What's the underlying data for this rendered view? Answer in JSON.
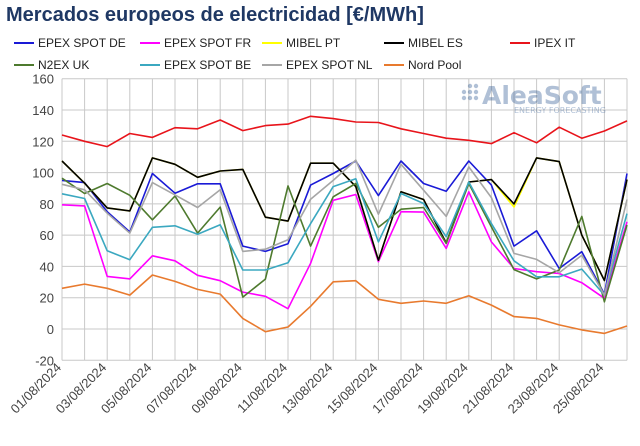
{
  "chart_data": {
    "type": "line",
    "title": "Mercados europeos de electricidad [€/MWh]",
    "xlabel": "",
    "ylabel": "",
    "ylim": [
      -20,
      160
    ],
    "yticks": [
      -20,
      0,
      20,
      40,
      60,
      80,
      100,
      120,
      140,
      160
    ],
    "grid": true,
    "legend_position": "top",
    "x": [
      "01/08/2024",
      "02/08/2024",
      "03/08/2024",
      "04/08/2024",
      "05/08/2024",
      "06/08/2024",
      "07/08/2024",
      "08/08/2024",
      "09/08/2024",
      "10/08/2024",
      "11/08/2024",
      "12/08/2024",
      "13/08/2024",
      "14/08/2024",
      "15/08/2024",
      "16/08/2024",
      "17/08/2024",
      "18/08/2024",
      "19/08/2024",
      "20/08/2024",
      "21/08/2024",
      "22/08/2024",
      "23/08/2024",
      "24/08/2024",
      "25/08/2024",
      "26/08/2024"
    ],
    "xtick_labels": [
      "01/08/2024",
      "03/08/2024",
      "05/08/2024",
      "07/08/2024",
      "09/08/2024",
      "11/08/2024",
      "13/08/2024",
      "15/08/2024",
      "17/08/2024",
      "19/08/2024",
      "21/08/2024",
      "23/08/2024",
      "25/08/2024"
    ],
    "series": [
      {
        "name": "EPEX SPOT DE",
        "color": "#1a1ad6",
        "values": [
          95,
          93.6,
          75,
          62,
          99.4,
          86.8,
          92.8,
          92.8,
          53,
          49.6,
          54.5,
          92,
          99.4,
          107.4,
          85.3,
          107.4,
          93,
          88,
          107.4,
          92,
          53,
          62.8,
          38.7,
          49.4,
          22.3,
          99.4
        ]
      },
      {
        "name": "EPEX SPOT FR",
        "color": "#ff00ff",
        "values": [
          79.4,
          78.7,
          33.6,
          32,
          46.8,
          43.6,
          34.3,
          30.9,
          23.6,
          20.9,
          13,
          42,
          82.3,
          86,
          43,
          75,
          74.7,
          51.5,
          87.7,
          55.7,
          38.7,
          36.6,
          35.5,
          29.6,
          19.6,
          68.5
        ]
      },
      {
        "name": "MIBEL PT",
        "color": "#ffff00",
        "values": [
          107.4,
          93.2,
          77.4,
          75.5,
          109.4,
          105.3,
          97,
          101,
          102,
          71.5,
          69,
          106,
          106,
          91,
          44,
          87.7,
          82.8,
          55,
          94,
          95.5,
          78,
          109.4,
          107,
          60,
          31,
          95.5
        ]
      },
      {
        "name": "MIBEL ES",
        "color": "#000000",
        "values": [
          107.4,
          93.2,
          77.4,
          75.5,
          109.4,
          105.3,
          97,
          101,
          102,
          71.5,
          69,
          106,
          106,
          91,
          44,
          87.7,
          82.8,
          55,
          94,
          95.5,
          80,
          109.4,
          107,
          60,
          31,
          95.5
        ]
      },
      {
        "name": "IPEX IT",
        "color": "#e8141b",
        "values": [
          124,
          120,
          116.6,
          125,
          122.5,
          128.7,
          128,
          133.6,
          126.8,
          130,
          131,
          136,
          134.5,
          132.3,
          132,
          128,
          125,
          122,
          120.6,
          118.5,
          125.5,
          119,
          129,
          122,
          126.6,
          133
        ]
      },
      {
        "name": "N2EX UK",
        "color": "#4e7a2e",
        "values": [
          96.4,
          86.6,
          93,
          85.5,
          69.8,
          85,
          61.3,
          77.9,
          20.4,
          31.9,
          91.5,
          53,
          84.5,
          93,
          65,
          76.6,
          77.7,
          54.7,
          93,
          65.3,
          38,
          32,
          37.7,
          72,
          17.4,
          66.5
        ]
      },
      {
        "name": "EPEX SPOT BE",
        "color": "#3ba8c0",
        "values": [
          86.4,
          83.4,
          50,
          44.3,
          65,
          66,
          60.6,
          66.6,
          37.7,
          37.7,
          42.3,
          67.4,
          91,
          96,
          55.7,
          86.6,
          80.2,
          59,
          94,
          67.4,
          43.6,
          33.4,
          33.4,
          38.3,
          21.7,
          73.8
        ]
      },
      {
        "name": "EPEX SPOT NL",
        "color": "#a6a6a6",
        "values": [
          92.5,
          89,
          74,
          61.3,
          93.6,
          85.7,
          77.7,
          89,
          49.6,
          51,
          57,
          83,
          95,
          108,
          73.4,
          105.3,
          88.7,
          72,
          103.6,
          84,
          48.3,
          44.5,
          36,
          47.2,
          21.7,
          82.8
        ]
      },
      {
        "name": "Nord Pool",
        "color": "#e87a2e",
        "values": [
          26,
          28.7,
          26,
          21.7,
          34.5,
          30.4,
          25.3,
          22.3,
          6.8,
          -1.7,
          1.3,
          14.5,
          30.2,
          30.9,
          19,
          16.4,
          17.9,
          16.4,
          21.3,
          15.3,
          7.9,
          6.8,
          2.6,
          -0.6,
          -2.8,
          1.9
        ]
      }
    ]
  },
  "logo": {
    "name": "AleaSoft",
    "tagline": "ENERGY FORECASTING"
  }
}
